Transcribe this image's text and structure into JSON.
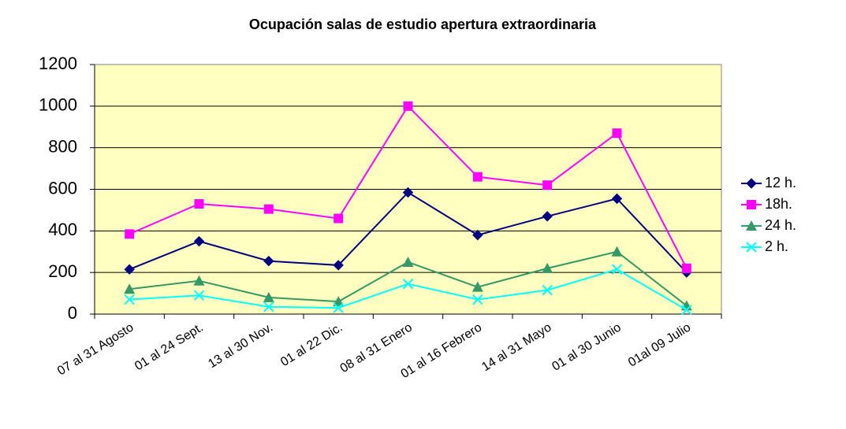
{
  "chart_data": {
    "type": "line",
    "title": "Ocupación salas de estudio apertura extraordinaria",
    "categories": [
      "07 al 31 Agosto",
      "01 al 24 Sept.",
      "13 al 30 Nov.",
      "01 al 22 Dic.",
      "08 al 31 Enero",
      "01 al 16 Febrero",
      "14 al 31 Mayo",
      "01 al 30 Junio",
      "01al 09 Julio"
    ],
    "series": [
      {
        "name": "12 h.",
        "color": "#000080",
        "marker": "diamond",
        "values": [
          215,
          350,
          255,
          235,
          585,
          380,
          470,
          555,
          200
        ]
      },
      {
        "name": "18h.",
        "color": "#ff00ff",
        "marker": "square",
        "values": [
          385,
          530,
          505,
          460,
          1000,
          660,
          620,
          870,
          220
        ]
      },
      {
        "name": "24 h.",
        "color": "#339966",
        "marker": "triangle",
        "values": [
          120,
          160,
          80,
          60,
          250,
          130,
          220,
          300,
          40
        ]
      },
      {
        "name": "2 h.",
        "color": "#00ffff",
        "marker": "x",
        "values": [
          70,
          90,
          35,
          30,
          145,
          70,
          115,
          215,
          20
        ]
      }
    ],
    "ylim": [
      0,
      1200
    ],
    "yticks": [
      0,
      200,
      400,
      600,
      800,
      1000,
      1200
    ],
    "grid": true,
    "legend": "right",
    "plot_background": "#ffffc0"
  }
}
